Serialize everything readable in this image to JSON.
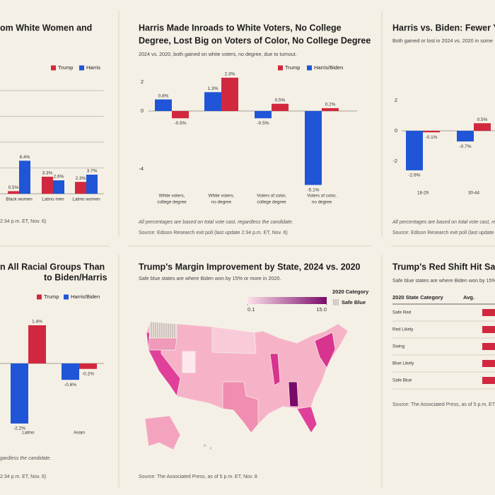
{
  "chart_data": [
    {
      "type": "bar",
      "title": [
        "om White Women and"
      ],
      "categories": [
        [
          "Black women"
        ],
        [
          "Latino men"
        ],
        [
          "Latino women"
        ]
      ],
      "series": [
        {
          "name": "Trump",
          "color": "#d1283f",
          "values": [
            0.5,
            3.3,
            2.3
          ],
          "value_labels": [
            "0.5%",
            "3.3%",
            "2.3%"
          ]
        },
        {
          "name": "Harris",
          "color": "#1f55d6",
          "values": [
            6.4,
            2.6,
            3.7
          ],
          "value_labels": [
            "6.4%",
            "2.6%",
            "3.7%"
          ]
        }
      ],
      "ylim": [
        0,
        20
      ],
      "yticks": [
        5,
        10,
        15,
        20
      ],
      "grid": true,
      "source": "2:34 p.m. ET, Nov. 6)"
    },
    {
      "type": "bar",
      "title": [
        "Harris Made Inroads to White Voters, No College",
        "Degree, Lost Big on Voters of Color, No College Degree"
      ],
      "subtitle": "2024 vs. 2020, both gained on white voters, no degree, due to turnout.",
      "categories": [
        [
          "White voters,",
          "college degree"
        ],
        [
          "White voters,",
          "no degree"
        ],
        [
          "Voters of color,",
          "college degree"
        ],
        [
          "Voters of color,",
          "no degree"
        ]
      ],
      "series": [
        {
          "name": "Trump",
          "color": "#d1283f",
          "values": [
            -0.5,
            2.3,
            0.5,
            0.2
          ],
          "value_labels": [
            "-0.5%",
            "2.3%",
            "0.5%",
            "0.2%"
          ]
        },
        {
          "name": "Harris/Biden",
          "color": "#1f55d6",
          "values": [
            0.8,
            1.3,
            -0.5,
            -5.1
          ],
          "value_labels": [
            "0.8%",
            "1.3%",
            "-0.5%",
            "-5.1%"
          ]
        }
      ],
      "ylim": [
        -5.5,
        2.5
      ],
      "yticks": [
        2,
        0,
        -4
      ],
      "grid": false,
      "footnote": "All percentages are based on total vote cast, regardless the candidate.",
      "source": "Source: Edison Research exit poll (last update 2:34 p.m. ET, Nov. 6)"
    },
    {
      "type": "bar",
      "title": [
        "Harris vs. Biden: Fewer You"
      ],
      "subtitle": "Both gained or lost in 2024 vs. 2020 in some",
      "categories": [
        [
          "18-29"
        ],
        [
          "30-44"
        ]
      ],
      "series": [
        {
          "color": "#d1283f",
          "values": [
            -0.1,
            0.5
          ],
          "value_labels": [
            "-0.1%",
            "0.5%"
          ]
        },
        {
          "color": "#1f55d6",
          "values": [
            -2.6,
            -0.7
          ],
          "value_labels": [
            "-2.6%",
            "-0.7%"
          ]
        }
      ],
      "ylim": [
        -3,
        2.5
      ],
      "yticks": [
        2,
        0,
        -2
      ],
      "grid": false,
      "footnote": "All percentages are based on total vote cast, re",
      "source": "Source: Edison Research exit poll (last update 2"
    },
    {
      "type": "bar",
      "title": [
        "n All Racial Groups Than",
        "to Biden/Harris"
      ],
      "categories": [
        [
          "Latino"
        ],
        [
          "Asian"
        ]
      ],
      "series": [
        {
          "name": "Trump",
          "color": "#d1283f",
          "values": [
            1.4,
            -0.2
          ],
          "value_labels": [
            "1.4%",
            "-0.2%"
          ]
        },
        {
          "name": "Harris/Biden",
          "color": "#1f55d6",
          "values": [
            -2.2,
            -0.6
          ],
          "value_labels": [
            "-2.2%",
            "-0.6%"
          ]
        }
      ],
      "ylim": [
        -2.5,
        2
      ],
      "yticks": [],
      "grid": false,
      "footnote": "gardless the candidate.",
      "source": "2:34 p.m. ET, Nov. 6)"
    },
    {
      "type": "map",
      "title": [
        "Trump's Margin Improvement by State, 2024 vs. 2020"
      ],
      "subtitle": "Safe blue states are where Biden won by 15% or more in 2020.",
      "legend_title": "2020 Category",
      "scale": [
        {
          "value": 0.1,
          "label": "0.1"
        },
        {
          "value": 15,
          "label": "15.0"
        }
      ],
      "colors": [
        "#fde0ea",
        "#7a0a6a"
      ],
      "hatch_label": "Safe Blue",
      "source": "Source: The Associated Press, as of 5 p.m. ET, Nov. 8"
    },
    {
      "type": "table",
      "title": [
        "Trump's Red Shift Hit Safe"
      ],
      "subtitle": "Safe blue states are where Biden won by 15%",
      "columns": [
        "2020 State Category",
        "Avg."
      ],
      "rows": [
        "Safe Red",
        "Red Likely",
        "Swing",
        "Blue Likely",
        "Safe Blue"
      ],
      "color": "#d1283f",
      "source": "Source: The Associated Press, as of 5 p.m. ET, N"
    }
  ]
}
